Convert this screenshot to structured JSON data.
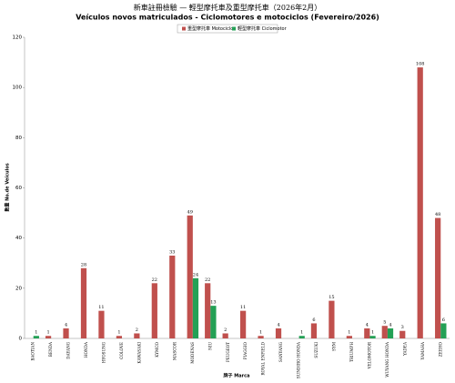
{
  "chart_data": {
    "type": "bar",
    "title": "新車註冊檢驗 — 輕型摩托車及重型摩托車（2026年2月）",
    "subtitle": "Veículos novos matriculados - Ciclomotores e motociclos (Fevereiro/2026)",
    "y_label": "數量 No.de Veículos",
    "x_label": "牌子 Marca",
    "categories": [
      "BAOTIAN",
      "BENDA",
      "DAYANG",
      "HONDA",
      "HYOSUNG",
      "COLOVE",
      "KAWASAKI",
      "KYMCO",
      "MASCOR",
      "MODENAS",
      "NIU",
      "PEUGEOT",
      "PIAGGIO",
      "ROYAL ENFIELD",
      "SANYANG",
      "SUNDIRO HONDA",
      "SUZUKI",
      "SYM",
      "TRIUMPH",
      "VELOMOTOR",
      "WUYANG HONDA",
      "YADEA",
      "YAMAHA",
      "ZEEHO"
    ],
    "series": [
      {
        "name": "重型摩托車 Motociclo",
        "color": "#c0504d",
        "values": [
          null,
          1,
          4,
          28,
          11,
          1,
          2,
          22,
          33,
          49,
          22,
          2,
          11,
          1,
          4,
          null,
          6,
          15,
          1,
          4,
          5,
          3,
          108,
          48
        ]
      },
      {
        "name": "輕型摩托車 Ciclomotor",
        "color": "#23a055",
        "values": [
          1,
          null,
          null,
          null,
          null,
          null,
          null,
          null,
          null,
          24,
          13,
          null,
          null,
          null,
          null,
          1,
          null,
          null,
          null,
          1,
          4,
          null,
          null,
          6
        ]
      }
    ],
    "ylim": [
      0,
      120
    ],
    "yticks": [
      0,
      20,
      40,
      60,
      80,
      100,
      120
    ],
    "legend": "top"
  }
}
